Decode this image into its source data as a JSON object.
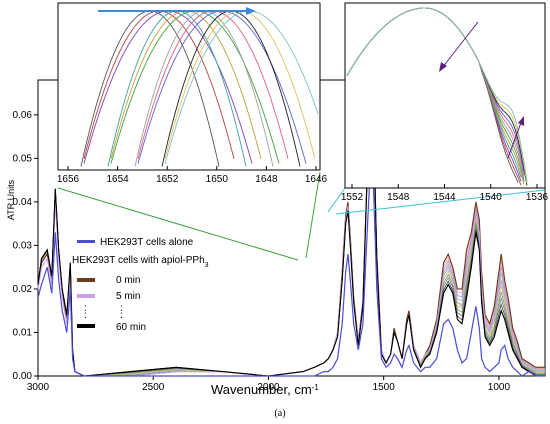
{
  "chart_data": {
    "type": "line",
    "ylabel": "ATR Units",
    "xlabel": "Wavenumber, cm",
    "xlabel_sup": "-1",
    "xlim": [
      3000,
      800
    ],
    "ylim": [
      0,
      0.068
    ],
    "x_ticks": [
      3000,
      2500,
      2000,
      1500,
      1000
    ],
    "y_ticks": [
      0.0,
      0.01,
      0.02,
      0.03,
      0.04,
      0.05,
      0.06
    ],
    "y_tick_labels": [
      "0.00",
      "0.01",
      "0.02",
      "0.03",
      "0.04",
      "0.05",
      "0.06"
    ],
    "caption": "(a)",
    "legend": {
      "placement": "center-left",
      "alone_label": "HEK293T cells alone",
      "treated_heading": "HEK293T cells with apiol-PPh",
      "treated_heading_sub": "3",
      "items": [
        {
          "label": "0 min",
          "color": "#6b3a1f"
        },
        {
          "label": "5 min",
          "color": "#c9a0e8"
        },
        {
          "label": "60 min",
          "color": "#000000"
        }
      ],
      "ellipsis": ":"
    },
    "series_colors": {
      "cells_alone": "#4b4bd6",
      "time_series": [
        "#e06060",
        "#f0a0a0",
        "#c080c0",
        "#80c0c0",
        "#a0d080",
        "#e0c060",
        "#60a060",
        "#808080",
        "#404040",
        "#000000"
      ]
    },
    "series": [
      {
        "name": "HEK293T cells alone",
        "x": [
          3000,
          2985,
          2960,
          2940,
          2925,
          2910,
          2895,
          2875,
          2860,
          2850,
          2840,
          2800,
          2600,
          2400,
          2200,
          2000,
          1850,
          1800,
          1760,
          1740,
          1720,
          1700,
          1680,
          1665,
          1655,
          1645,
          1630,
          1610,
          1590,
          1570,
          1555,
          1545,
          1530,
          1510,
          1490,
          1470,
          1455,
          1440,
          1420,
          1400,
          1390,
          1370,
          1340,
          1320,
          1300,
          1270,
          1240,
          1220,
          1200,
          1180,
          1160,
          1140,
          1120,
          1100,
          1085,
          1075,
          1060,
          1040,
          1020,
          1000,
          990,
          975,
          960,
          940,
          920,
          900,
          870,
          840,
          800
        ],
        "y": [
          0.018,
          0.021,
          0.025,
          0.019,
          0.033,
          0.022,
          0.015,
          0.01,
          0.02,
          0.004,
          0.001,
          0.0,
          0.0,
          0.0,
          0.0,
          0.0,
          0.0,
          0.0,
          0.001,
          0.001,
          0.002,
          0.004,
          0.012,
          0.024,
          0.028,
          0.022,
          0.012,
          0.006,
          0.012,
          0.035,
          0.051,
          0.045,
          0.02,
          0.004,
          0.002,
          0.003,
          0.005,
          0.004,
          0.002,
          0.006,
          0.007,
          0.003,
          0.001,
          0.002,
          0.002,
          0.004,
          0.012,
          0.013,
          0.011,
          0.006,
          0.003,
          0.004,
          0.01,
          0.016,
          0.011,
          0.004,
          0.002,
          0.001,
          0.002,
          0.003,
          0.006,
          0.007,
          0.004,
          0.002,
          0.001,
          0.0,
          0.001,
          0.0,
          0.0
        ]
      },
      {
        "name": "0 min",
        "x": [
          3000,
          2985,
          2960,
          2940,
          2925,
          2910,
          2895,
          2875,
          2860,
          2850,
          2840,
          2800,
          2600,
          2400,
          2200,
          2000,
          1850,
          1800,
          1760,
          1740,
          1720,
          1700,
          1680,
          1665,
          1655,
          1645,
          1630,
          1610,
          1590,
          1570,
          1555,
          1545,
          1530,
          1510,
          1490,
          1470,
          1455,
          1440,
          1420,
          1400,
          1390,
          1370,
          1340,
          1320,
          1300,
          1270,
          1240,
          1220,
          1200,
          1180,
          1160,
          1140,
          1120,
          1100,
          1085,
          1075,
          1060,
          1040,
          1020,
          1000,
          990,
          975,
          960,
          940,
          920,
          900,
          870,
          840,
          800
        ],
        "y": [
          0.02,
          0.026,
          0.028,
          0.022,
          0.042,
          0.028,
          0.019,
          0.013,
          0.025,
          0.005,
          0.001,
          0.0,
          0.0,
          0.001,
          0.001,
          0.0,
          0.001,
          0.002,
          0.003,
          0.004,
          0.006,
          0.01,
          0.024,
          0.037,
          0.04,
          0.032,
          0.018,
          0.008,
          0.017,
          0.05,
          0.067,
          0.06,
          0.028,
          0.006,
          0.003,
          0.005,
          0.011,
          0.008,
          0.004,
          0.013,
          0.015,
          0.007,
          0.003,
          0.005,
          0.007,
          0.013,
          0.026,
          0.028,
          0.025,
          0.02,
          0.02,
          0.029,
          0.033,
          0.04,
          0.036,
          0.024,
          0.014,
          0.012,
          0.016,
          0.024,
          0.028,
          0.022,
          0.018,
          0.011,
          0.008,
          0.004,
          0.003,
          0.002,
          0.002
        ]
      },
      {
        "name": "5 min",
        "x": [
          3000,
          2985,
          2960,
          2940,
          2925,
          2910,
          2895,
          2875,
          2860,
          2850,
          2840,
          2800,
          2600,
          2400,
          2200,
          2000,
          1850,
          1800,
          1760,
          1740,
          1720,
          1700,
          1680,
          1665,
          1655,
          1645,
          1630,
          1610,
          1590,
          1570,
          1555,
          1545,
          1530,
          1510,
          1490,
          1470,
          1455,
          1440,
          1420,
          1400,
          1390,
          1370,
          1340,
          1320,
          1300,
          1270,
          1240,
          1220,
          1200,
          1180,
          1160,
          1140,
          1120,
          1100,
          1085,
          1075,
          1060,
          1040,
          1020,
          1000,
          990,
          975,
          960,
          940,
          920,
          900,
          870,
          840,
          800
        ],
        "y": [
          0.02,
          0.025,
          0.027,
          0.021,
          0.04,
          0.027,
          0.018,
          0.012,
          0.024,
          0.005,
          0.001,
          0.0,
          0.0,
          0.001,
          0.001,
          0.0,
          0.001,
          0.002,
          0.003,
          0.004,
          0.006,
          0.01,
          0.023,
          0.036,
          0.039,
          0.031,
          0.017,
          0.008,
          0.016,
          0.048,
          0.065,
          0.058,
          0.027,
          0.006,
          0.003,
          0.005,
          0.01,
          0.008,
          0.004,
          0.012,
          0.014,
          0.007,
          0.003,
          0.005,
          0.006,
          0.012,
          0.023,
          0.025,
          0.022,
          0.017,
          0.016,
          0.024,
          0.03,
          0.037,
          0.033,
          0.021,
          0.012,
          0.01,
          0.013,
          0.019,
          0.022,
          0.018,
          0.015,
          0.009,
          0.006,
          0.003,
          0.002,
          0.001,
          0.001
        ]
      },
      {
        "name": "60 min",
        "x": [
          3000,
          2985,
          2960,
          2940,
          2925,
          2910,
          2895,
          2875,
          2860,
          2850,
          2840,
          2800,
          2600,
          2400,
          2200,
          2000,
          1850,
          1800,
          1760,
          1740,
          1720,
          1700,
          1680,
          1665,
          1655,
          1645,
          1630,
          1610,
          1590,
          1570,
          1555,
          1545,
          1530,
          1510,
          1490,
          1470,
          1455,
          1440,
          1420,
          1400,
          1390,
          1370,
          1340,
          1320,
          1300,
          1270,
          1240,
          1220,
          1200,
          1180,
          1160,
          1140,
          1120,
          1100,
          1085,
          1075,
          1060,
          1040,
          1020,
          1000,
          990,
          975,
          960,
          940,
          920,
          900,
          870,
          840,
          800
        ],
        "y": [
          0.021,
          0.027,
          0.029,
          0.023,
          0.043,
          0.029,
          0.02,
          0.014,
          0.026,
          0.006,
          0.001,
          0.0,
          0.001,
          0.002,
          0.001,
          0.0,
          0.001,
          0.002,
          0.003,
          0.004,
          0.006,
          0.009,
          0.022,
          0.035,
          0.038,
          0.03,
          0.017,
          0.007,
          0.016,
          0.049,
          0.066,
          0.059,
          0.027,
          0.005,
          0.003,
          0.005,
          0.01,
          0.008,
          0.004,
          0.012,
          0.014,
          0.006,
          0.002,
          0.004,
          0.005,
          0.01,
          0.019,
          0.021,
          0.019,
          0.013,
          0.012,
          0.018,
          0.025,
          0.033,
          0.029,
          0.017,
          0.009,
          0.007,
          0.009,
          0.013,
          0.015,
          0.013,
          0.01,
          0.006,
          0.004,
          0.002,
          0.001,
          0.0,
          0.0
        ]
      }
    ],
    "insets": [
      {
        "xlim": [
          1656,
          1646
        ],
        "x_ticks": [
          1656,
          1654,
          1652,
          1650,
          1648,
          1646
        ],
        "placement": "top-left"
      },
      {
        "xlim": [
          1552,
          1536
        ],
        "x_ticks": [
          1552,
          1548,
          1544,
          1540,
          1536
        ],
        "placement": "top-right"
      }
    ]
  }
}
